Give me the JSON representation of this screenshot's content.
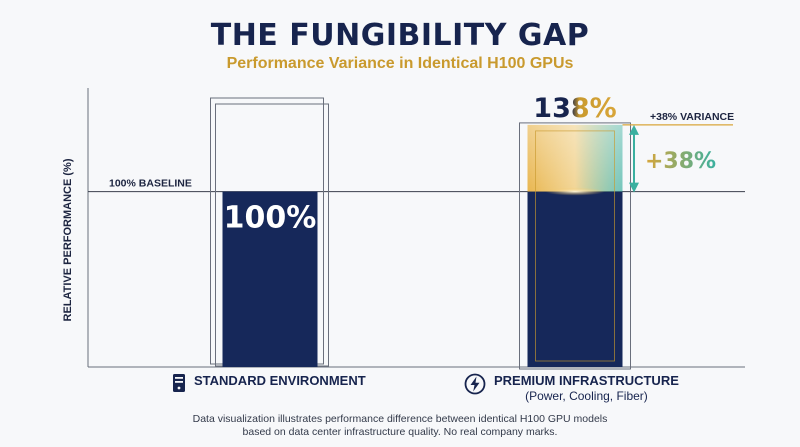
{
  "title": "THE FUNGIBILITY GAP",
  "subtitle": "Performance Variance in Identical H100 GPUs",
  "colors": {
    "bar": "#16285a",
    "accent_gold": "#d9a63a",
    "accent_teal": "#3ab0a0",
    "text_dark": "#17244e"
  },
  "chart_data": {
    "type": "bar",
    "title": "THE FUNGIBILITY GAP",
    "subtitle": "Performance Variance in Identical H100 GPUs",
    "ylabel": "RELATIVE PERFORMANCE (%)",
    "categories": [
      "STANDARD ENVIRONMENT",
      "PREMIUM INFRASTRUCTURE"
    ],
    "category_sublabels": [
      "",
      "(Power, Cooling, Fiber)"
    ],
    "category_icons": [
      "server-icon",
      "lightning-icon"
    ],
    "values": [
      100,
      138
    ],
    "data_labels": [
      "100%",
      "138%"
    ],
    "baseline": {
      "value": 100,
      "label": "100% BASELINE"
    },
    "variance": {
      "value": 38,
      "label": "+38% VARIANCE",
      "big_label": "+38%"
    },
    "ylim": [
      0,
      175
    ],
    "grid": false
  },
  "footer": {
    "line1": "Data visualization illustrates performance difference between identical H100 GPU models",
    "line2": "based on data center infrastructure quality. No real company marks."
  }
}
